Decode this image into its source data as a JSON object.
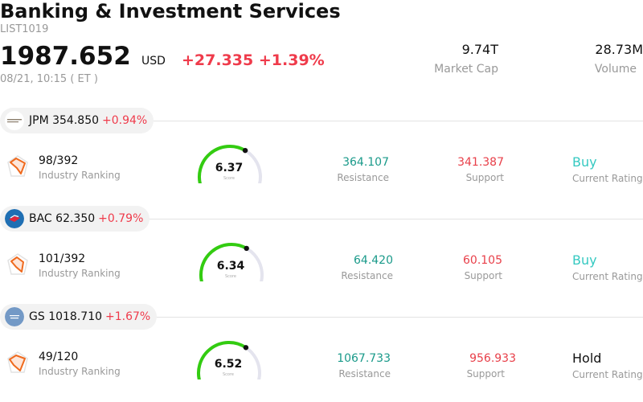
{
  "header": {
    "title": "Banking & Investment Services",
    "code": "LIST1019",
    "price": "1987.652",
    "currency": "USD",
    "change": "+27.335",
    "change_pct": "+1.39%",
    "datetime": "08/21, 10:15 ( ET )",
    "market_cap": "9.74T",
    "market_cap_label": "Market Cap",
    "volume": "28.73M",
    "volume_label": "Volume"
  },
  "colors": {
    "down_red": "#ef3b4b",
    "resistance": "#1a9a8a",
    "buy": "#35c9c1",
    "gauge_green": "#33cc11",
    "gauge_track": "#e4e4ee"
  },
  "stocks": [
    {
      "ticker": "JPM",
      "price": "354.850",
      "change_pct": "+0.94%",
      "logo": "jpmorgan-logo-icon",
      "ranking": "98/392",
      "ranking_label": "Industry Ranking",
      "score": "6.37",
      "score_label": "Score",
      "score_value": 6.37,
      "resistance": "364.107",
      "resistance_label": "Resistance",
      "support": "341.387",
      "support_label": "Support",
      "rating": "Buy",
      "rating_label": "Current Rating"
    },
    {
      "ticker": "BAC",
      "price": "62.350",
      "change_pct": "+0.79%",
      "logo": "bank-of-america-logo-icon",
      "ranking": "101/392",
      "ranking_label": "Industry Ranking",
      "score": "6.34",
      "score_label": "Score",
      "score_value": 6.34,
      "resistance": "64.420",
      "resistance_label": "Resistance",
      "support": "60.105",
      "support_label": "Support",
      "rating": "Buy",
      "rating_label": "Current Rating"
    },
    {
      "ticker": "GS",
      "price": "1018.710",
      "change_pct": "+1.67%",
      "logo": "goldman-sachs-logo-icon",
      "ranking": "49/120",
      "ranking_label": "Industry Ranking",
      "score": "6.52",
      "score_label": "Score",
      "score_value": 6.52,
      "resistance": "1067.733",
      "resistance_label": "Resistance",
      "support": "956.933",
      "support_label": "Support",
      "rating": "Hold",
      "rating_label": "Current Rating"
    }
  ]
}
